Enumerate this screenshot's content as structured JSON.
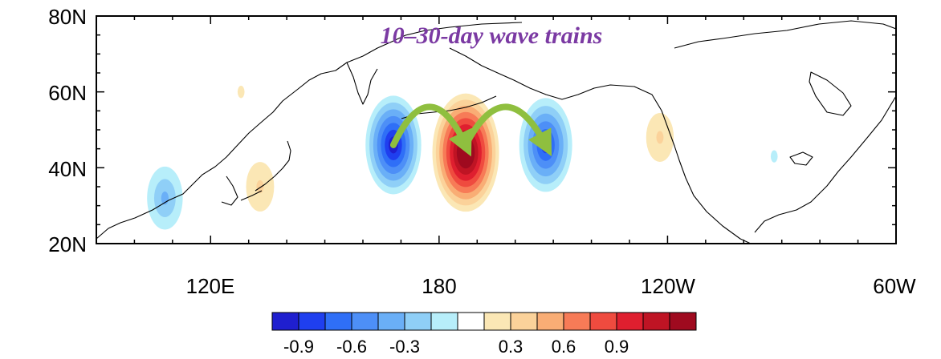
{
  "map": {
    "title": "10–30-day wave trains",
    "lat_labels": [
      "80N",
      "60N",
      "40N",
      "20N"
    ],
    "lon_labels": [
      "120E",
      "180",
      "120W",
      "60W"
    ],
    "extent": {
      "lat_min": 20,
      "lat_max": 80,
      "lon_min": 90,
      "lon_max": 300
    }
  },
  "colorbar": {
    "labels": [
      "-0.9",
      "-0.6",
      "-0.3",
      "0.3",
      "0.6",
      "0.9"
    ],
    "colors": [
      "#1f1fcf",
      "#1f3fef",
      "#2f6ff7",
      "#4d8ff7",
      "#6aaff7",
      "#8fcff7",
      "#b7eefa",
      "#ffffff",
      "#fbe7b5",
      "#fbd29a",
      "#f9ad75",
      "#f77b57",
      "#ef4b3f",
      "#df1f2f",
      "#bf1424",
      "#9f0a1f"
    ]
  },
  "anomalies": [
    {
      "name": "trough-west-pacific",
      "lon": 168,
      "lat": 46,
      "amp": -0.65
    },
    {
      "name": "ridge-dateline",
      "lon": 187,
      "lat": 44,
      "amp": 0.95
    },
    {
      "name": "trough-northeast-pacific",
      "lon": 208,
      "lat": 46,
      "amp": -0.6
    },
    {
      "name": "weak-trough-east-asia",
      "lon": 108,
      "lat": 32,
      "amp": -0.25
    },
    {
      "name": "weak-ridge-japan",
      "lon": 133,
      "lat": 35,
      "amp": 0.22
    },
    {
      "name": "weak-ridge-west-na",
      "lon": 238,
      "lat": 48,
      "amp": 0.2
    },
    {
      "name": "weak-trough-great-lakes",
      "lon": 268,
      "lat": 43,
      "amp": -0.15
    },
    {
      "name": "weak-ridge-kamchatka-west",
      "lon": 128,
      "lat": 60,
      "amp": 0.15
    }
  ],
  "arrows": [
    {
      "from": {
        "lon": 168,
        "lat": 46
      },
      "to": {
        "lon": 187,
        "lat": 46
      }
    },
    {
      "from": {
        "lon": 187,
        "lat": 46
      },
      "to": {
        "lon": 208,
        "lat": 46
      }
    }
  ],
  "arrow_color": "#8fbf3f"
}
